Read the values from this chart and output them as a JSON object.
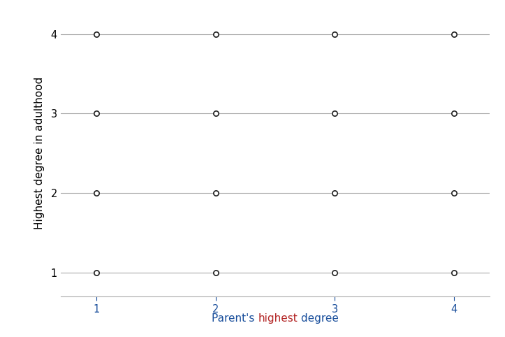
{
  "x_values": [
    1,
    1,
    1,
    1,
    2,
    2,
    2,
    2,
    3,
    3,
    3,
    3,
    4,
    4,
    4,
    4
  ],
  "y_values": [
    1,
    2,
    3,
    4,
    1,
    2,
    3,
    4,
    1,
    2,
    3,
    4,
    1,
    2,
    3,
    4
  ],
  "xlim": [
    0.7,
    4.3
  ],
  "ylim": [
    0.7,
    4.3
  ],
  "xticks": [
    1,
    2,
    3,
    4
  ],
  "yticks": [
    1,
    2,
    3,
    4
  ],
  "xlabel_parts": [
    {
      "text": "Parent's ",
      "color": "#1a4f9c"
    },
    {
      "text": "highest",
      "color": "#b22222"
    },
    {
      "text": " degree",
      "color": "#1a4f9c"
    }
  ],
  "ylabel": "Highest degree in adulthood",
  "ylabel_color": "#000000",
  "xtick_color": "#1a4f9c",
  "ytick_color": "#000000",
  "marker_facecolor": "white",
  "marker_edgecolor": "#222222",
  "marker_size": 28,
  "marker_linewidth": 1.2,
  "grid_color": "#aaaaaa",
  "grid_linewidth": 0.8,
  "background_color": "#ffffff",
  "label_fontsize": 11,
  "tick_fontsize": 10.5,
  "ylabel_fontsize": 11
}
